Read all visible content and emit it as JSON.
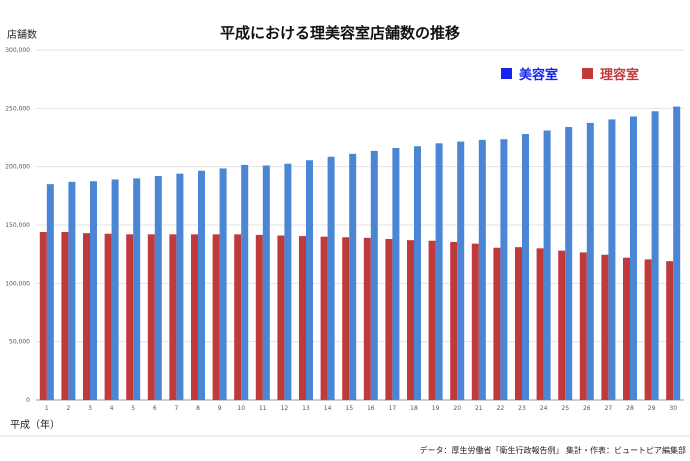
{
  "chart_data": {
    "type": "bar",
    "title": "平成における理美容室店舗数の推移",
    "ylabel": "店舗数",
    "xlabel": "平成（年）",
    "source": "データ：厚生労働省「衛生行政報告例」 集計・作表：ビュートピア編集部",
    "ylim": [
      0,
      300000
    ],
    "yticks": [
      "0",
      "50,000",
      "100,000",
      "150,000",
      "200,000",
      "250,000",
      "300,000"
    ],
    "yticks_values": [
      0,
      50000,
      100000,
      150000,
      200000,
      250000,
      300000
    ],
    "categories": [
      "1",
      "2",
      "3",
      "4",
      "5",
      "6",
      "7",
      "8",
      "9",
      "10",
      "11",
      "12",
      "13",
      "14",
      "15",
      "16",
      "17",
      "18",
      "19",
      "20",
      "21",
      "22",
      "23",
      "24",
      "25",
      "26",
      "27",
      "28",
      "29",
      "30"
    ],
    "legend_position": "top-right",
    "grid": true,
    "series": [
      {
        "name": "理容室",
        "color": "#c0393b",
        "values": [
          144000,
          144000,
          143000,
          142500,
          142000,
          142000,
          142000,
          142000,
          142000,
          142000,
          141500,
          141000,
          140500,
          140000,
          139500,
          139000,
          138000,
          137000,
          136500,
          135500,
          134000,
          130500,
          131000,
          130000,
          128000,
          126500,
          124500,
          122000,
          120500,
          119000
        ]
      },
      {
        "name": "美容室",
        "color": "#4a86d3",
        "values": [
          185000,
          187000,
          187500,
          189000,
          190000,
          192000,
          194000,
          196500,
          198500,
          201500,
          201000,
          202500,
          205500,
          208500,
          211000,
          213500,
          216000,
          217500,
          220000,
          221500,
          223000,
          223500,
          228000,
          231000,
          234000,
          237500,
          240500,
          243000,
          247500,
          251500
        ]
      }
    ]
  }
}
